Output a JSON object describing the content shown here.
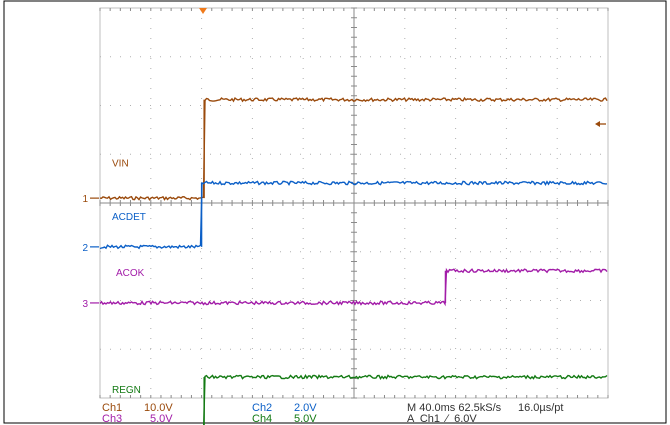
{
  "chart_data": {
    "type": "line",
    "grid": true,
    "x_divisions": 10,
    "y_divisions": 8,
    "x": [
      0,
      1,
      2,
      3,
      4,
      5,
      6,
      7,
      8,
      9,
      10
    ],
    "series": [
      {
        "name": "VIN",
        "channel": "1",
        "color": "#9a4a0c",
        "values": [
          0,
          0.05,
          2.02,
          2.02,
          2.02,
          2.02,
          2.02,
          2.02,
          2.02,
          2.02,
          2.02
        ],
        "label": "VIN",
        "marker": "1"
      },
      {
        "name": "ACDET",
        "channel": "2",
        "color": "#0b5fc7",
        "values": [
          0,
          0.05,
          1.31,
          1.31,
          1.31,
          1.31,
          1.31,
          1.31,
          1.31,
          1.31,
          1.31
        ],
        "label": "ACDET",
        "marker": "2"
      },
      {
        "name": "ACOK",
        "channel": "3",
        "color": "#a21ca8",
        "values": [
          0,
          0,
          0,
          0,
          0,
          0,
          0,
          0.05,
          0.66,
          0.66,
          0.66
        ],
        "label": "ACOK",
        "marker": "3"
      },
      {
        "name": "REGN",
        "channel": "4",
        "color": "#137a13",
        "values": [
          0,
          0.05,
          1.18,
          1.18,
          1.18,
          1.18,
          1.18,
          1.18,
          1.18,
          1.18,
          1.18
        ],
        "label": "REGN",
        "marker": "4"
      }
    ],
    "edges": {
      "VIN": 2.05,
      "ACDET": 2.0,
      "ACOK": 6.8,
      "REGN": 2.05
    },
    "footer": {
      "ch1": "Ch1",
      "ch1_scale": "10.0V",
      "ch2": "Ch2",
      "ch2_scale": "2.0V",
      "ch3": "Ch3",
      "ch3_scale": "5.0V",
      "ch4": "Ch4",
      "ch4_scale": "5.0V",
      "timebase": "M 40.0ms 62.5kS/s",
      "record": "16.0µs/pt",
      "trigger": "A  Ch1  ∕  6.0V"
    },
    "colors": {
      "ch1": "#9a4a0c",
      "ch2": "#0b5fc7",
      "ch3": "#a21ca8",
      "ch4": "#137a13",
      "trigger_marker": "#f07a1a",
      "grid": "#9a9a9a"
    }
  }
}
